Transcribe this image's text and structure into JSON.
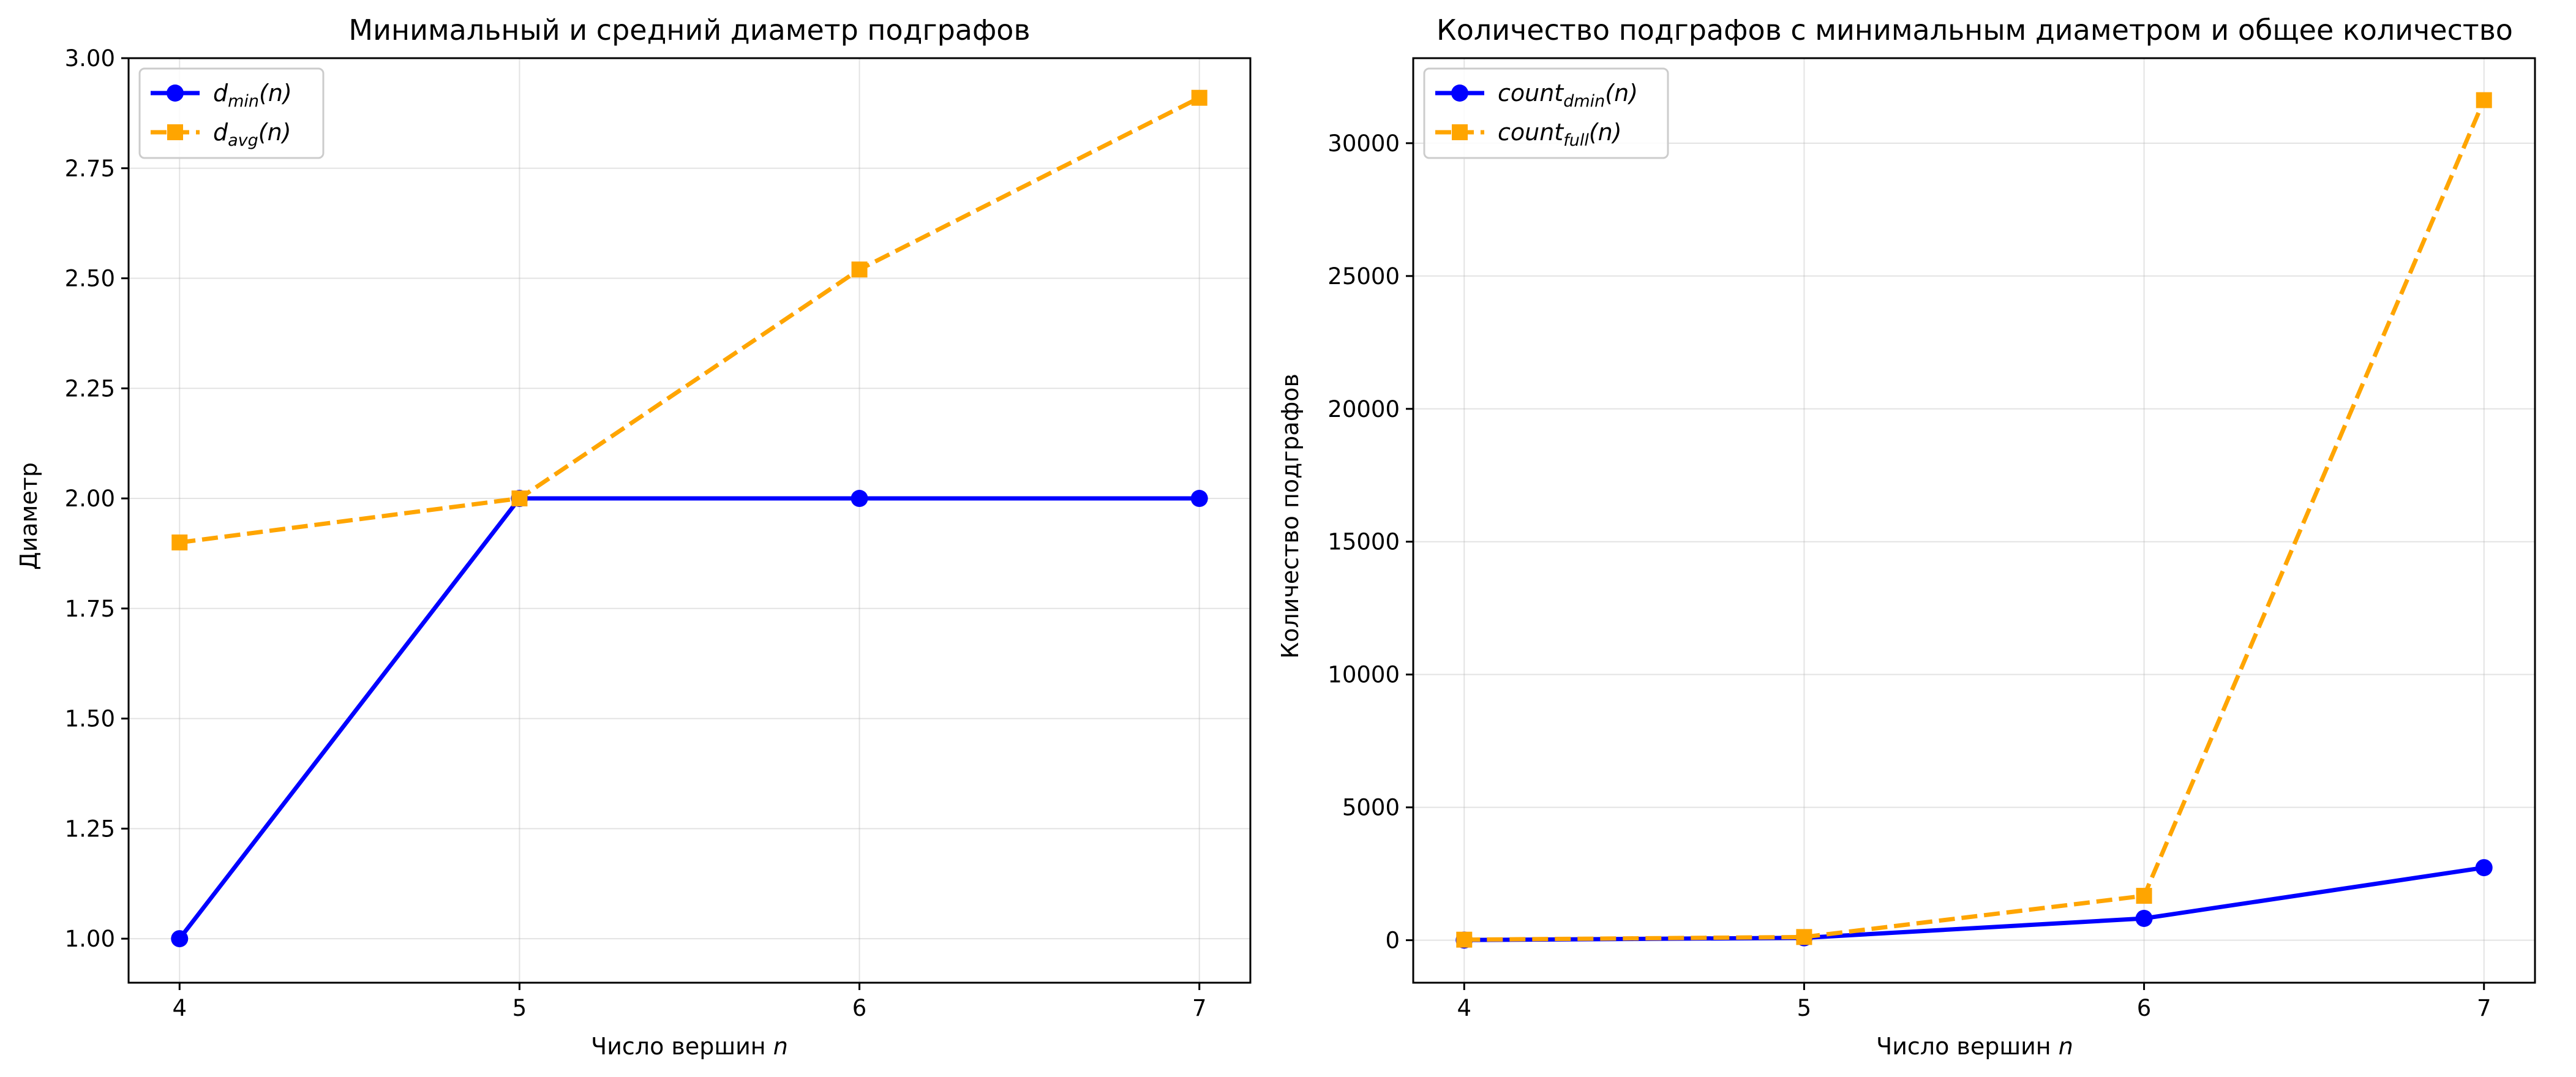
{
  "chart_data": [
    {
      "type": "line",
      "title": "Минимальный и средний диаметр подграфов",
      "xlabel": "Число вершин",
      "xlabel_var": "n",
      "ylabel": "Диаметр",
      "x": [
        4,
        5,
        6,
        7
      ],
      "xlim": [
        3.85,
        7.15
      ],
      "ylim": [
        0.9,
        3.0
      ],
      "yticks": [
        1.0,
        1.25,
        1.5,
        1.75,
        2.0,
        2.25,
        2.5,
        2.75,
        3.0
      ],
      "ytick_labels": [
        "1.00",
        "1.25",
        "1.50",
        "1.75",
        "2.00",
        "2.25",
        "2.50",
        "2.75",
        "3.00"
      ],
      "xtick_labels": [
        "4",
        "5",
        "6",
        "7"
      ],
      "grid": true,
      "legend_position": "top-left",
      "series": [
        {
          "base": "d",
          "sub": "min",
          "arg": "(n)",
          "values": [
            1.0,
            2.0,
            2.0,
            2.0
          ],
          "color": "#0000ff",
          "style": "solid",
          "marker": "circle"
        },
        {
          "base": "d",
          "sub": "avg",
          "arg": "(n)",
          "values": [
            1.9,
            2.0,
            2.52,
            2.91
          ],
          "color": "#ffa500",
          "style": "dashed",
          "marker": "square"
        }
      ]
    },
    {
      "type": "line",
      "title": "Количество подграфов с минимальным диаметром и общее количество",
      "xlabel": "Число вершин",
      "xlabel_var": "n",
      "ylabel": "Количество подграфов",
      "x": [
        4,
        5,
        6,
        7
      ],
      "xlim": [
        3.85,
        7.15
      ],
      "ylim": [
        -1600,
        33200
      ],
      "yticks": [
        0,
        5000,
        10000,
        15000,
        20000,
        25000,
        30000
      ],
      "ytick_labels": [
        "0",
        "5000",
        "10000",
        "15000",
        "20000",
        "25000",
        "30000"
      ],
      "xtick_labels": [
        "4",
        "5",
        "6",
        "7"
      ],
      "grid": true,
      "legend_position": "top-left",
      "series": [
        {
          "base": "count",
          "sub": "dmin",
          "arg": "(n)",
          "values": [
            6,
            90,
            820,
            2730
          ],
          "color": "#0000ff",
          "style": "solid",
          "marker": "circle"
        },
        {
          "base": "count",
          "sub": "full",
          "arg": "(n)",
          "values": [
            20,
            120,
            1670,
            31620
          ],
          "color": "#ffa500",
          "style": "dashed",
          "marker": "square"
        }
      ]
    }
  ]
}
